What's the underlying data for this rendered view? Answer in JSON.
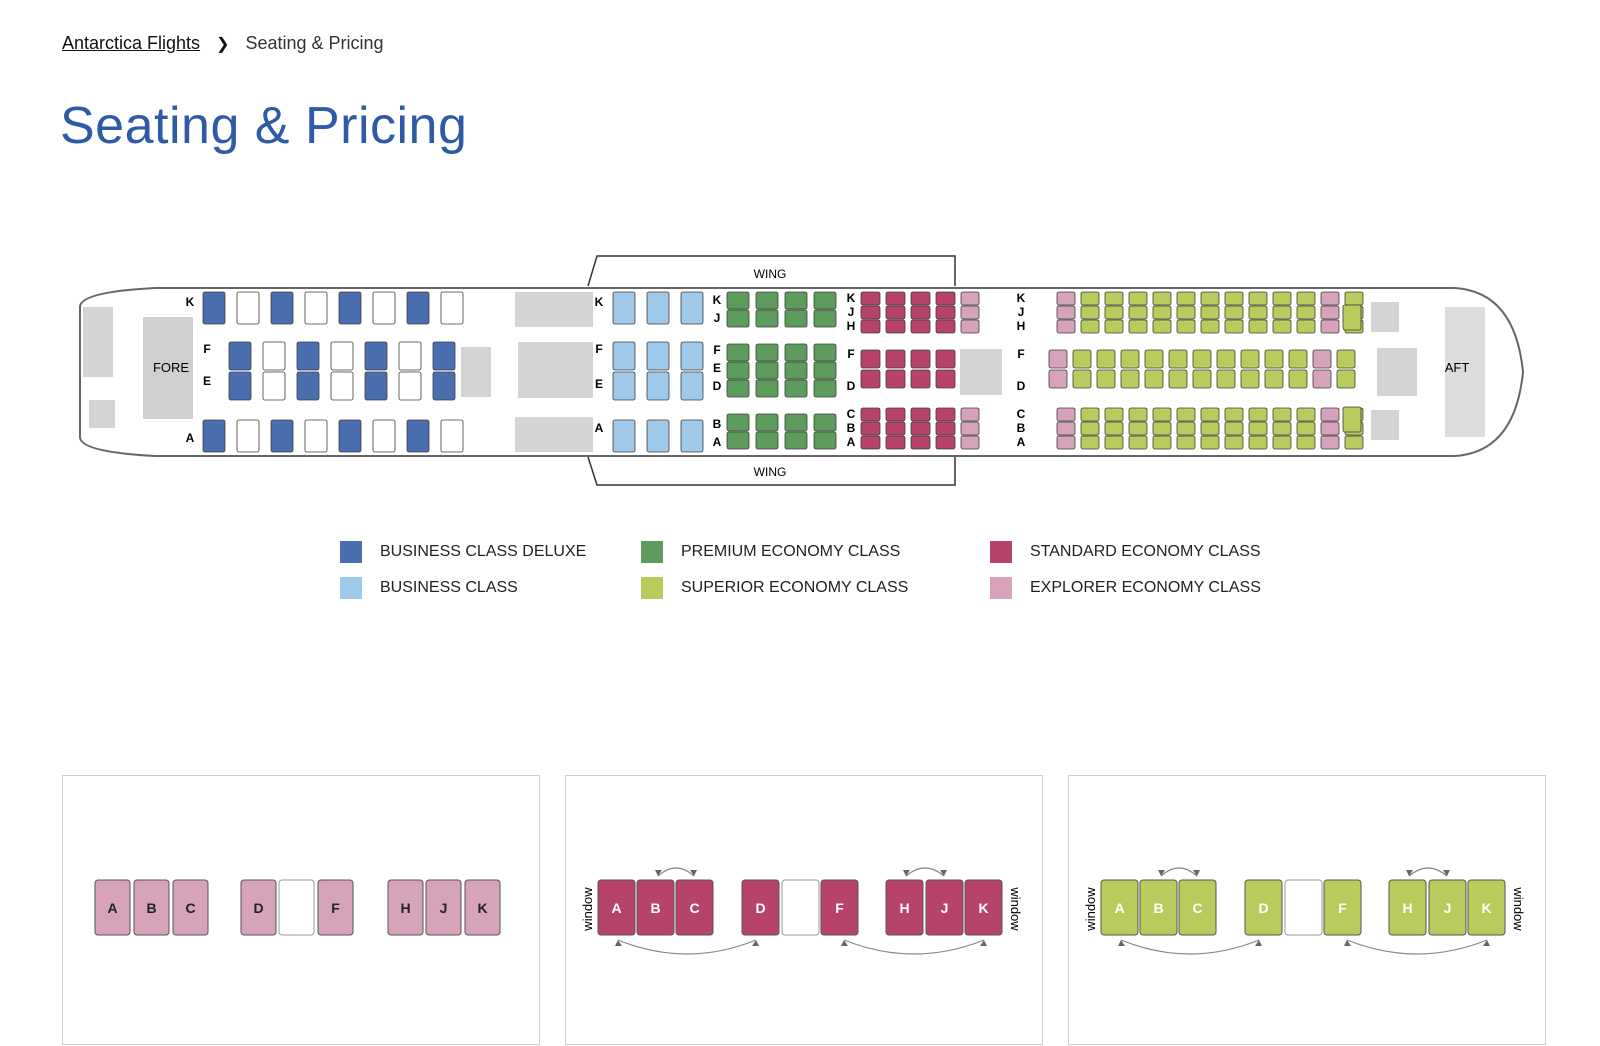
{
  "breadcrumb": {
    "home": "Antarctica Flights",
    "current": "Seating & Pricing"
  },
  "page": {
    "title": "Seating & Pricing"
  },
  "seatmap": {
    "wing_label": "WING",
    "fore_label": "FORE",
    "aft_label": "AFT"
  },
  "legend": [
    {
      "label": "BUSINESS CLASS DELUXE",
      "color": "#4a6fb0"
    },
    {
      "label": "BUSINESS CLASS",
      "color": "#9ec9ea"
    },
    {
      "label": "PREMIUM ECONOMY CLASS",
      "color": "#5e9c5e"
    },
    {
      "label": "SUPERIOR ECONOMY CLASS",
      "color": "#b7cc5c"
    },
    {
      "label": "STANDARD ECONOMY CLASS",
      "color": "#b74468"
    },
    {
      "label": "EXPLORER ECONOMY CLASS",
      "color": "#d7a3ba"
    }
  ],
  "panels": [
    {
      "color": "#d7a3ba",
      "seats": [
        "A",
        "B",
        "C",
        "D",
        "",
        "F",
        "H",
        "J",
        "K"
      ],
      "window_label": ""
    },
    {
      "color": "#b74468",
      "seats": [
        "A",
        "B",
        "C",
        "D",
        "",
        "F",
        "H",
        "J",
        "K"
      ],
      "window_label": "window"
    },
    {
      "color": "#b7cc5c",
      "seats": [
        "A",
        "B",
        "C",
        "D",
        "",
        "F",
        "H",
        "J",
        "K"
      ],
      "window_label": "window"
    }
  ]
}
